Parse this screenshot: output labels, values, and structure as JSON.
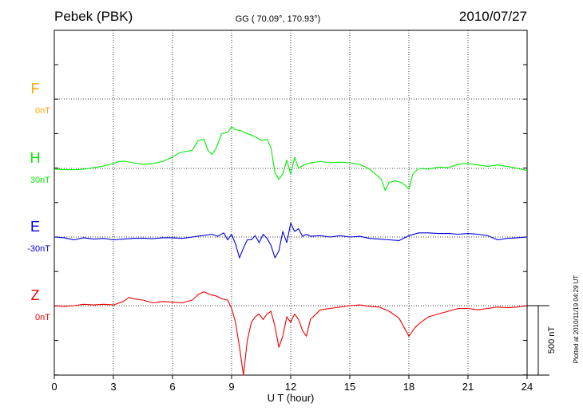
{
  "header": {
    "station": "Pebek (PBK)",
    "coords": "GG ( 70.09°, 170.93°)",
    "date": "2010/07/27"
  },
  "side_note": "Plotted at 2010/11/19 04:29 UT",
  "chart_data": {
    "type": "line",
    "xlabel": "U T (hour)",
    "xlim": [
      0,
      24
    ],
    "xticks": [
      "0",
      "3",
      "6",
      "9",
      "12",
      "15",
      "18",
      "21",
      "24"
    ],
    "grid": true,
    "scale_bar": {
      "label": "500 nT",
      "value_nT": 500
    },
    "series": [
      {
        "name": "F",
        "baseline_label": "0nT",
        "color": "#ffa500",
        "x": [],
        "y": []
      },
      {
        "name": "H",
        "baseline_label": "30nT",
        "color": "#00ee00",
        "x": [
          0,
          0.5,
          1,
          1.5,
          2,
          2.3,
          2.6,
          3,
          3.3,
          3.6,
          4,
          4.5,
          5,
          5.5,
          6,
          6.3,
          6.6,
          7,
          7.3,
          7.6,
          7.8,
          8,
          8.2,
          8.5,
          8.8,
          9,
          9.2,
          9.5,
          9.8,
          10,
          10.3,
          10.5,
          10.8,
          11,
          11.2,
          11.4,
          11.6,
          11.8,
          12,
          12.2,
          12.4,
          12.6,
          12.8,
          13,
          13.5,
          14,
          14.5,
          15,
          15.5,
          16,
          16.3,
          16.6,
          16.8,
          17,
          17.3,
          17.6,
          17.8,
          18,
          18.2,
          18.5,
          19,
          19.5,
          20,
          20.5,
          21,
          21.5,
          22,
          22.5,
          23,
          23.5,
          24
        ],
        "y": [
          -5,
          -8,
          -10,
          -5,
          5,
          12,
          20,
          35,
          50,
          52,
          40,
          30,
          35,
          50,
          80,
          110,
          120,
          130,
          200,
          210,
          130,
          100,
          140,
          250,
          260,
          300,
          280,
          270,
          250,
          240,
          220,
          200,
          210,
          150,
          -30,
          -80,
          -40,
          60,
          -40,
          80,
          0,
          20,
          30,
          40,
          50,
          40,
          45,
          40,
          30,
          -5,
          -40,
          -80,
          -160,
          -100,
          -90,
          -100,
          -120,
          -150,
          -40,
          0,
          -5,
          10,
          5,
          30,
          35,
          25,
          15,
          25,
          15,
          0,
          -15
        ]
      },
      {
        "name": "E",
        "baseline_label": "-30nT",
        "color": "#0000dd",
        "x": [
          0,
          0.5,
          1,
          1.5,
          2,
          2.5,
          3,
          3.5,
          4,
          4.5,
          5,
          5.5,
          6,
          6.5,
          7,
          7.5,
          8,
          8.3,
          8.6,
          8.8,
          9,
          9.2,
          9.4,
          9.6,
          9.8,
          10,
          10.2,
          10.4,
          10.6,
          10.8,
          11,
          11.2,
          11.4,
          11.6,
          11.8,
          12,
          12.2,
          12.4,
          12.6,
          12.8,
          13,
          13.5,
          14,
          14.5,
          15,
          15.5,
          16,
          16.5,
          17,
          17.5,
          18,
          18.5,
          19,
          19.5,
          20,
          20.5,
          21,
          21.5,
          22,
          22.5,
          23,
          23.5,
          24
        ],
        "y": [
          0,
          -5,
          -20,
          -5,
          -15,
          -10,
          -20,
          -15,
          -10,
          -8,
          -12,
          -5,
          -5,
          -10,
          0,
          10,
          20,
          5,
          30,
          -20,
          20,
          -50,
          -150,
          -80,
          -20,
          -20,
          10,
          -40,
          20,
          -10,
          -60,
          -150,
          -100,
          40,
          -40,
          100,
          40,
          60,
          5,
          20,
          5,
          10,
          0,
          10,
          0,
          5,
          -10,
          -15,
          -20,
          -25,
          10,
          30,
          30,
          25,
          25,
          20,
          25,
          20,
          10,
          -20,
          -10,
          -5,
          0
        ]
      },
      {
        "name": "Z",
        "baseline_label": "0nT",
        "color": "#ee0000",
        "x": [
          0,
          0.5,
          1,
          1.5,
          2,
          2.5,
          3,
          3.5,
          3.8,
          4,
          4.5,
          5,
          5.5,
          6,
          6.5,
          7,
          7.3,
          7.6,
          7.9,
          8.2,
          8.5,
          8.8,
          9,
          9.2,
          9.4,
          9.6,
          9.8,
          10,
          10.2,
          10.4,
          10.6,
          10.8,
          11,
          11.2,
          11.4,
          11.6,
          11.8,
          12,
          12.2,
          12.4,
          12.6,
          12.8,
          13,
          13.5,
          14,
          14.5,
          15,
          15.5,
          16,
          16.5,
          17,
          17.5,
          18,
          18.3,
          18.6,
          19,
          19.5,
          20,
          20.5,
          21,
          21.5,
          22,
          22.5,
          23,
          23.5,
          24
        ],
        "y": [
          0,
          -5,
          0,
          10,
          5,
          10,
          5,
          30,
          60,
          50,
          40,
          20,
          30,
          25,
          20,
          40,
          80,
          100,
          80,
          70,
          50,
          40,
          -20,
          -120,
          -300,
          -500,
          -250,
          -120,
          -80,
          -60,
          -100,
          -60,
          -40,
          -150,
          -300,
          -220,
          -80,
          -120,
          -60,
          -100,
          -180,
          -220,
          -100,
          -30,
          -20,
          -10,
          0,
          5,
          -5,
          -10,
          -40,
          -90,
          -220,
          -160,
          -120,
          -80,
          -60,
          -40,
          -20,
          -20,
          -30,
          -20,
          -10,
          -15,
          -10,
          0
        ]
      }
    ]
  }
}
